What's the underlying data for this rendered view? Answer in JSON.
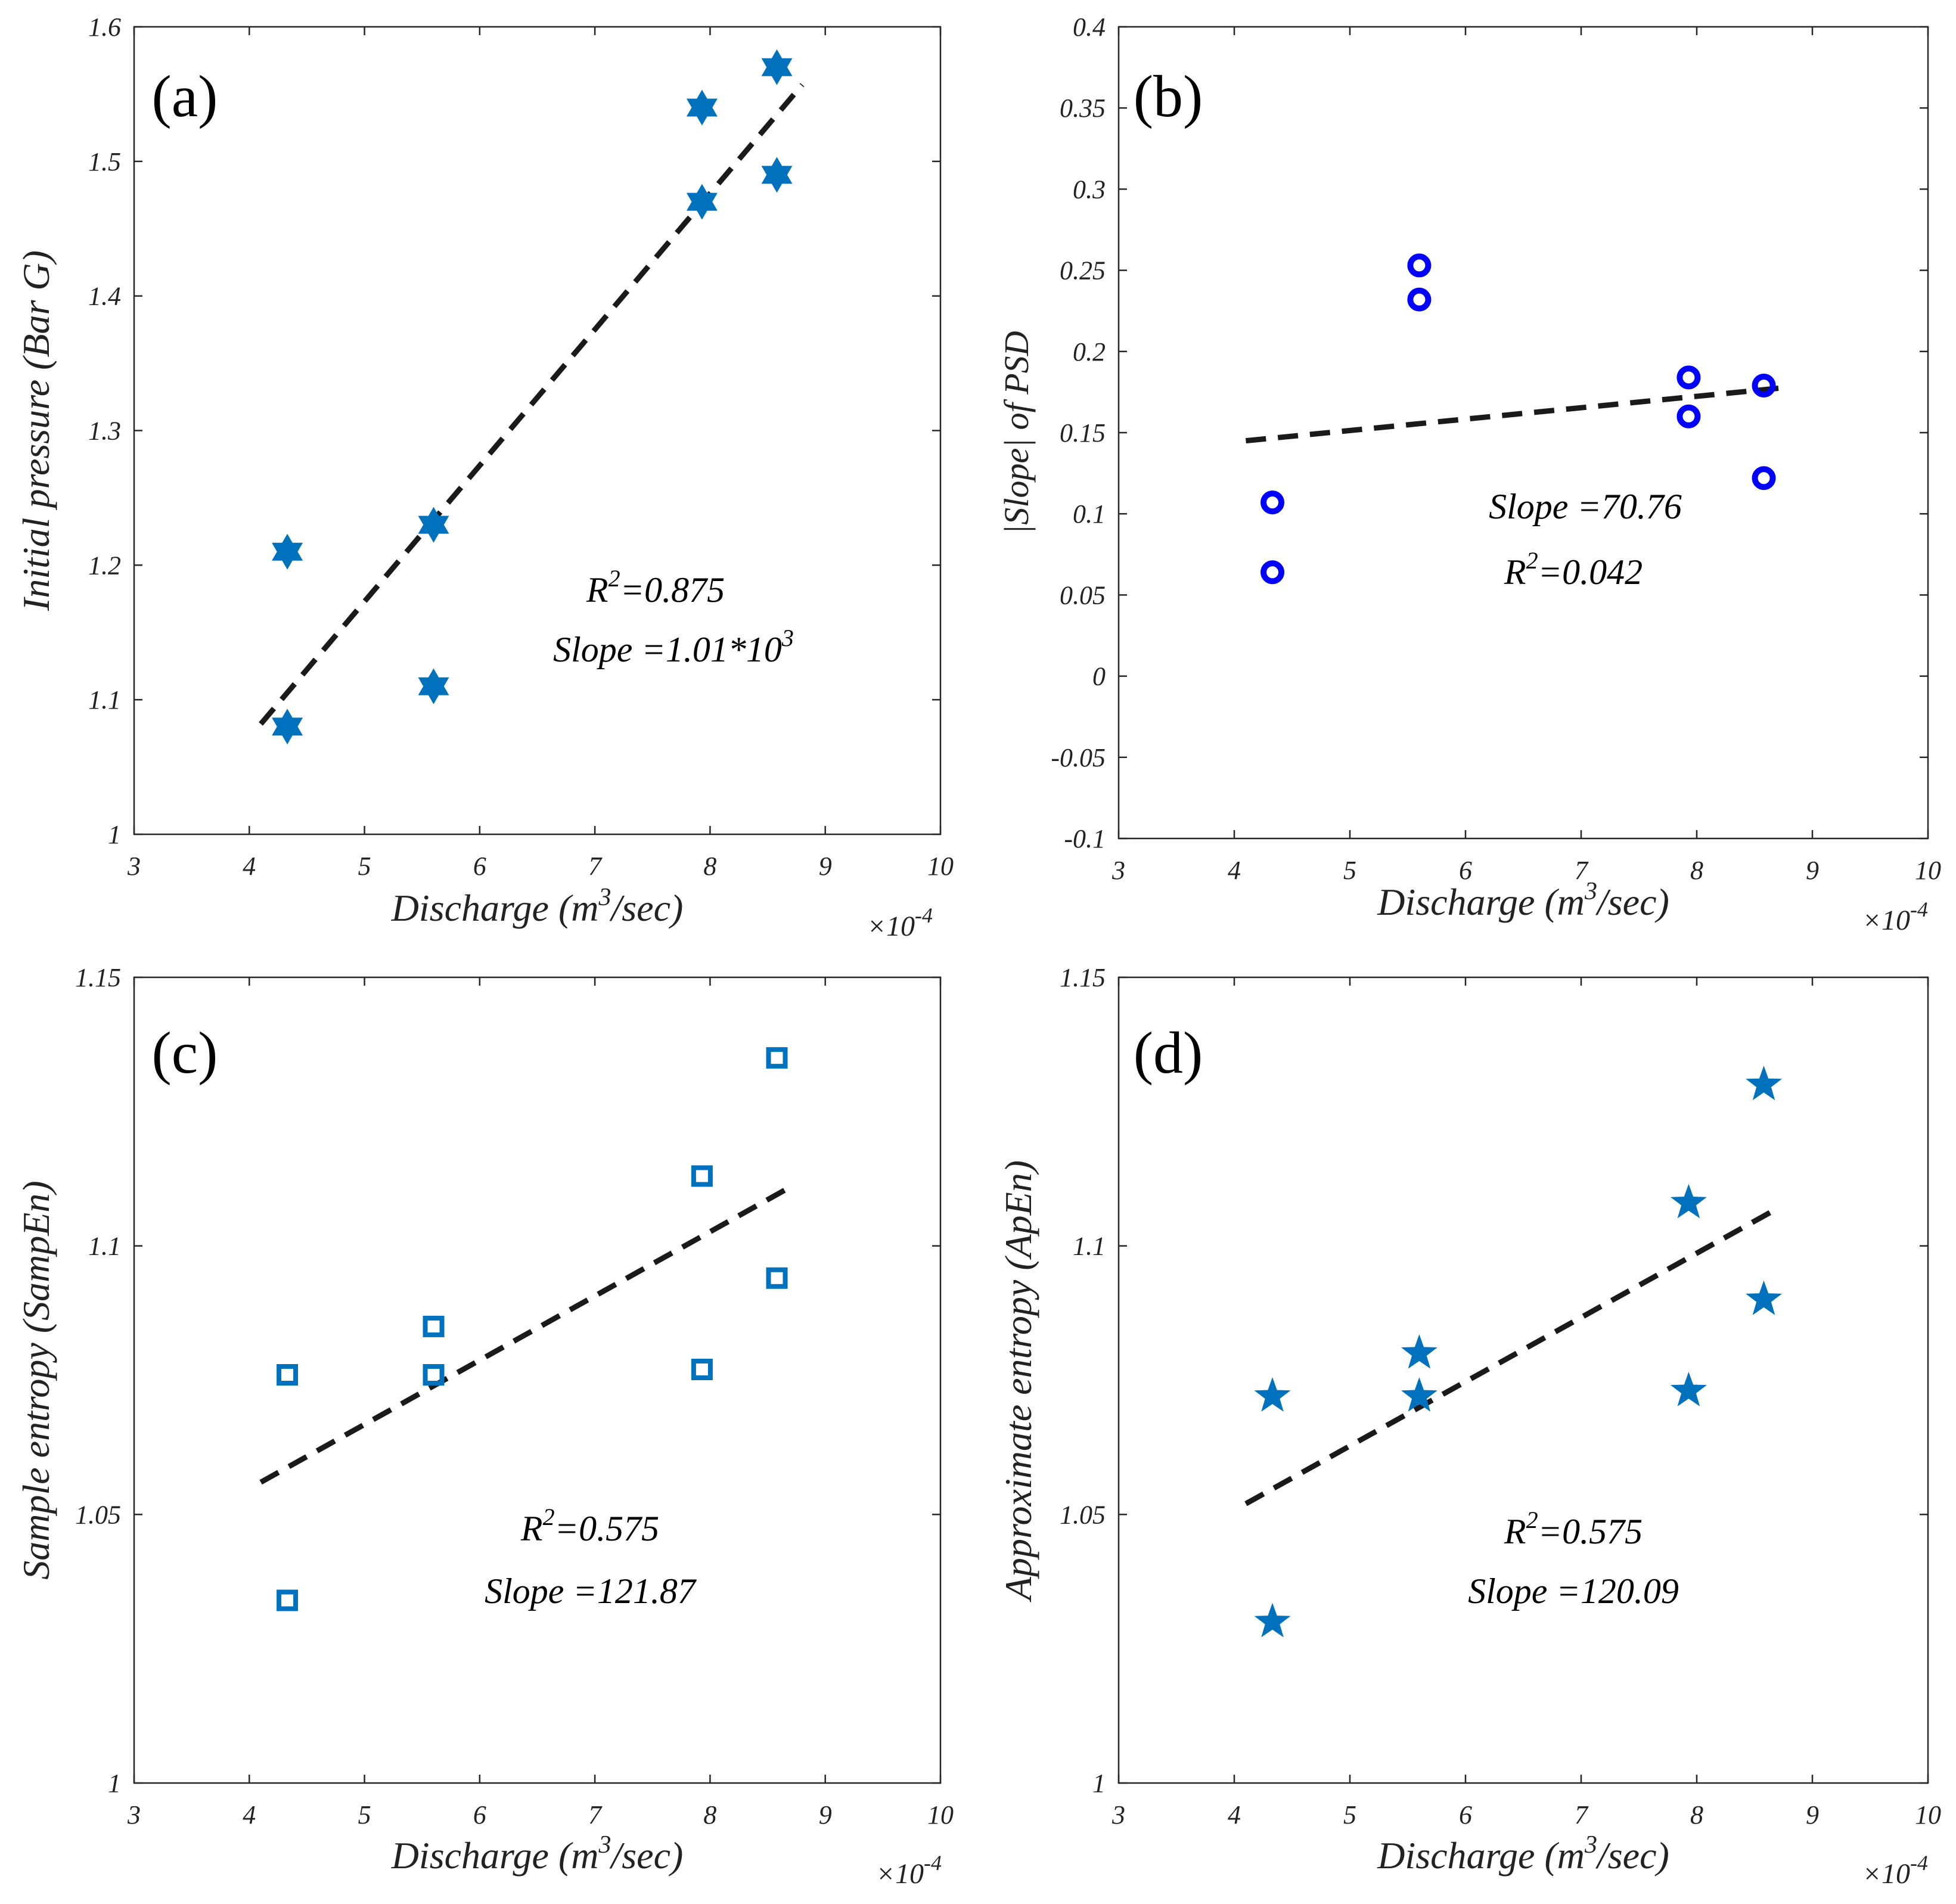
{
  "figure": {
    "exponent_label": "×10",
    "exponent_power": "-4"
  },
  "chart_data": [
    {
      "id": "a",
      "type": "scatter",
      "panel_label": "(a)",
      "xlabel_parts": [
        "Discharge (m",
        "3",
        "/sec)"
      ],
      "ylabel": "Initial pressure (Bar G)",
      "xlim": [
        3,
        10
      ],
      "ylim": [
        1,
        1.6
      ],
      "xticks": [
        3,
        4,
        5,
        6,
        7,
        8,
        9,
        10
      ],
      "xtick_labels": [
        "3",
        "4",
        "5",
        "6",
        "7",
        "8",
        "9",
        "10"
      ],
      "yticks": [
        1,
        1.1,
        1.2,
        1.3,
        1.4,
        1.5,
        1.6
      ],
      "ytick_labels": [
        "1",
        "1.1",
        "1.2",
        "1.3",
        "1.4",
        "1.5",
        "1.6"
      ],
      "marker": "hexagram",
      "marker_color": "#0072BD",
      "x": [
        4.33,
        4.33,
        5.6,
        5.6,
        7.93,
        7.93,
        8.58,
        8.58
      ],
      "y": [
        1.08,
        1.21,
        1.11,
        1.23,
        1.47,
        1.54,
        1.49,
        1.57
      ],
      "fit_line": {
        "x": [
          4.1,
          8.8
        ],
        "y": [
          1.082,
          1.557
        ]
      },
      "annotations": [
        {
          "parts": [
            "R",
            "2",
            "=0.875"
          ]
        },
        {
          "parts": [
            "Slope =1.01*10",
            "3",
            ""
          ]
        }
      ]
    },
    {
      "id": "b",
      "type": "scatter",
      "panel_label": "(b)",
      "xlabel_parts": [
        "Discharge (m",
        "3",
        "/sec)"
      ],
      "ylabel": "|Slope| of PSD",
      "xlim": [
        3,
        10
      ],
      "ylim": [
        -0.1,
        0.4
      ],
      "xticks": [
        3,
        4,
        5,
        6,
        7,
        8,
        9,
        10
      ],
      "xtick_labels": [
        "3",
        "4",
        "5",
        "6",
        "7",
        "8",
        "9",
        "10"
      ],
      "yticks": [
        -0.1,
        -0.05,
        0,
        0.05,
        0.1,
        0.15,
        0.2,
        0.25,
        0.3,
        0.35,
        0.4
      ],
      "ytick_labels": [
        "-0.1",
        "-0.05",
        "0",
        "0.05",
        "0.1",
        "0.15",
        "0.2",
        "0.25",
        "0.3",
        "0.35",
        "0.4"
      ],
      "marker": "circle",
      "marker_color": "#0000FF",
      "x": [
        4.33,
        4.33,
        5.6,
        5.6,
        7.93,
        7.93,
        8.58,
        8.58
      ],
      "y": [
        0.064,
        0.107,
        0.232,
        0.253,
        0.16,
        0.184,
        0.122,
        0.179
      ],
      "fit_line": {
        "x": [
          4.1,
          8.8
        ],
        "y": [
          0.145,
          0.178
        ]
      },
      "annotations": [
        {
          "parts": [
            "Slope =70.76",
            "",
            ""
          ]
        },
        {
          "parts": [
            "R",
            "2",
            "=0.042"
          ]
        }
      ]
    },
    {
      "id": "c",
      "type": "scatter",
      "panel_label": "(c)",
      "xlabel_parts": [
        "Discharge (m",
        "3",
        "/sec)"
      ],
      "ylabel": "Sample entropy (SampEn)",
      "xlim": [
        3,
        10
      ],
      "ylim": [
        1,
        1.15
      ],
      "xticks": [
        3,
        4,
        5,
        6,
        7,
        8,
        9,
        10
      ],
      "xtick_labels": [
        "3",
        "4",
        "5",
        "6",
        "7",
        "8",
        "9",
        "10"
      ],
      "yticks": [
        1,
        1.05,
        1.1,
        1.15
      ],
      "ytick_labels": [
        "1",
        "1.05",
        "1.1",
        "1.15"
      ],
      "marker": "square",
      "marker_color": "#0072BD",
      "x": [
        4.33,
        4.33,
        5.6,
        5.6,
        7.93,
        7.93,
        8.58,
        8.58
      ],
      "y": [
        1.034,
        1.076,
        1.076,
        1.085,
        1.077,
        1.113,
        1.094,
        1.135
      ],
      "fit_line": {
        "x": [
          4.1,
          8.7
        ],
        "y": [
          1.056,
          1.111
        ]
      },
      "annotations": [
        {
          "parts": [
            "R",
            "2",
            "=0.575"
          ]
        },
        {
          "parts": [
            "Slope =121.87",
            "",
            ""
          ]
        }
      ]
    },
    {
      "id": "d",
      "type": "scatter",
      "panel_label": "(d)",
      "xlabel_parts": [
        "Discharge (m",
        "3",
        "/sec)"
      ],
      "ylabel": "Approximate entropy (ApEn)",
      "xlim": [
        3,
        10
      ],
      "ylim": [
        1,
        1.15
      ],
      "xticks": [
        3,
        4,
        5,
        6,
        7,
        8,
        9,
        10
      ],
      "xtick_labels": [
        "3",
        "4",
        "5",
        "6",
        "7",
        "8",
        "9",
        "10"
      ],
      "yticks": [
        1,
        1.05,
        1.1,
        1.15
      ],
      "ytick_labels": [
        "1",
        "1.05",
        "1.1",
        "1.15"
      ],
      "marker": "pentagram",
      "marker_color": "#0072BD",
      "x": [
        4.33,
        4.33,
        5.6,
        5.6,
        7.93,
        7.93,
        8.58,
        8.58
      ],
      "y": [
        1.03,
        1.072,
        1.072,
        1.08,
        1.073,
        1.108,
        1.09,
        1.13
      ],
      "fit_line": {
        "x": [
          4.1,
          8.7
        ],
        "y": [
          1.052,
          1.107
        ]
      },
      "annotations": [
        {
          "parts": [
            "R",
            "2",
            "=0.575"
          ]
        },
        {
          "parts": [
            "Slope =120.09",
            "",
            ""
          ]
        }
      ]
    }
  ]
}
